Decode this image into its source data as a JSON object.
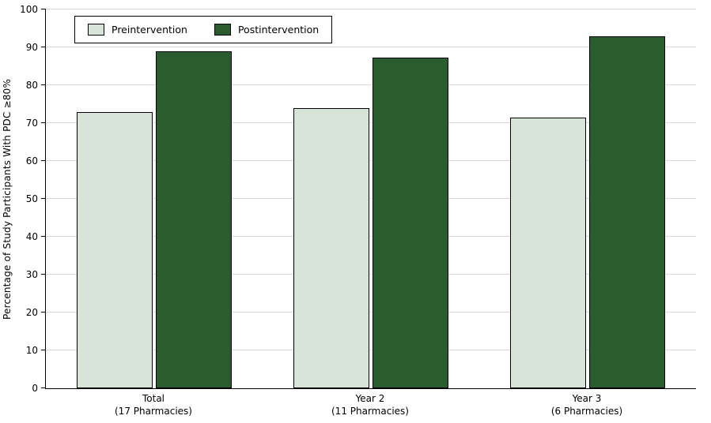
{
  "chart_data": {
    "type": "bar",
    "title": "",
    "xlabel": "",
    "ylabel": "Percentage of Study Participants With PDC ≥80%",
    "ylim": [
      0,
      100
    ],
    "ytick_step": 10,
    "grid": true,
    "legend_position": "top-left",
    "categories": [
      {
        "label": "Total",
        "sublabel": "(17 Pharmacies)"
      },
      {
        "label": "Year 2",
        "sublabel": "(11 Pharmacies)"
      },
      {
        "label": "Year 3",
        "sublabel": "(6 Pharmacies)"
      }
    ],
    "series": [
      {
        "name": "Preintervention",
        "color": "#d8e4d8",
        "values": [
          73,
          74,
          71.5
        ]
      },
      {
        "name": "Postintervention",
        "color": "#2a5c30",
        "values": [
          89,
          87.3,
          92.9
        ]
      }
    ],
    "colors": {
      "grid": "#d9d9d9",
      "axis": "#000000",
      "text": "#000000"
    }
  }
}
